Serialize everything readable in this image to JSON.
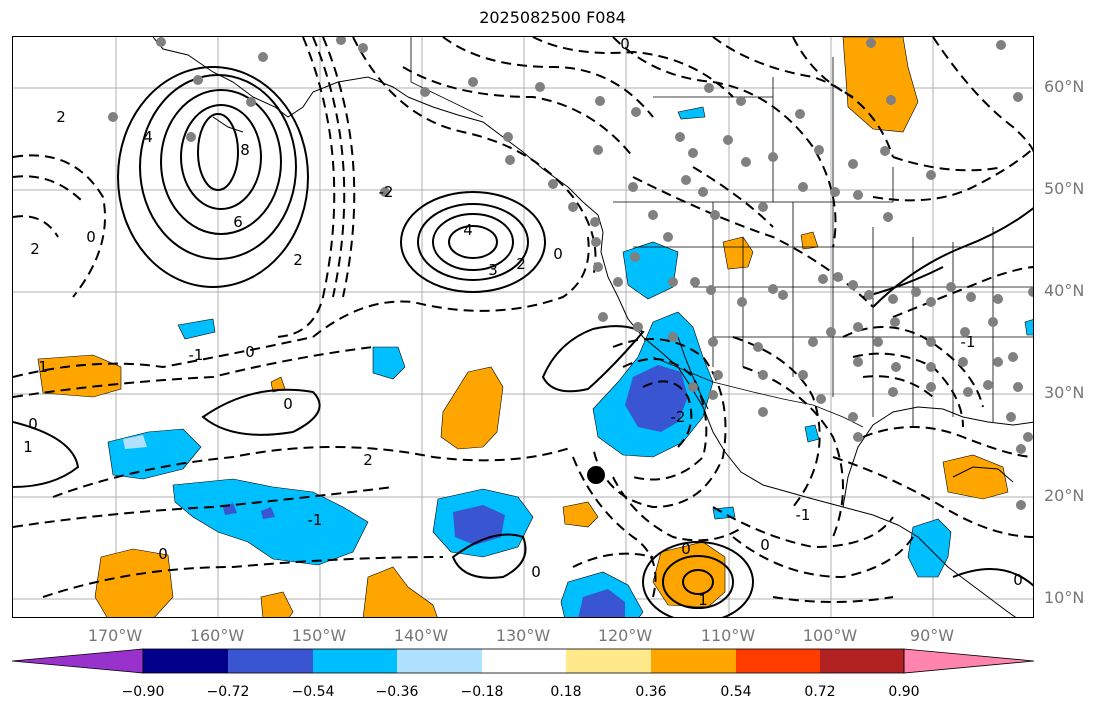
{
  "title": "2025082500 F084",
  "lat_labels": [
    "60°N",
    "50°N",
    "40°N",
    "30°N",
    "20°N",
    "10°N"
  ],
  "lon_labels": [
    "170°W",
    "160°W",
    "150°W",
    "140°W",
    "130°W",
    "120°W",
    "110°W",
    "100°W",
    "90°W"
  ],
  "contour_labels": [
    "0",
    "2",
    "4",
    "8",
    "6",
    "2",
    "0",
    "4",
    "3",
    "2",
    "0",
    "-2",
    "2",
    "0",
    "-1",
    "0",
    "2",
    "0",
    "-1",
    "0",
    "1",
    "0",
    "-1",
    "0",
    "1",
    "-2",
    "0",
    "-1",
    "0",
    "1"
  ],
  "colorbar": {
    "ticks": [
      "−0.90",
      "−0.72",
      "−0.54",
      "−0.36",
      "−0.18",
      "0.18",
      "0.36",
      "0.54",
      "0.72",
      "0.90"
    ],
    "colors": [
      "#9932cc",
      "#00008b",
      "#3955d1",
      "#00bfff",
      "#b0e2ff",
      "#ffffff",
      "#ffe98a",
      "#ffa500",
      "#ff3c00",
      "#b22222",
      "#ff85ae"
    ]
  },
  "fill_colors": {
    "orange": "#ffa500",
    "light_blue": "#00bfff",
    "dark_blue": "#3955d1",
    "pale_blue": "#b0e2ff"
  }
}
